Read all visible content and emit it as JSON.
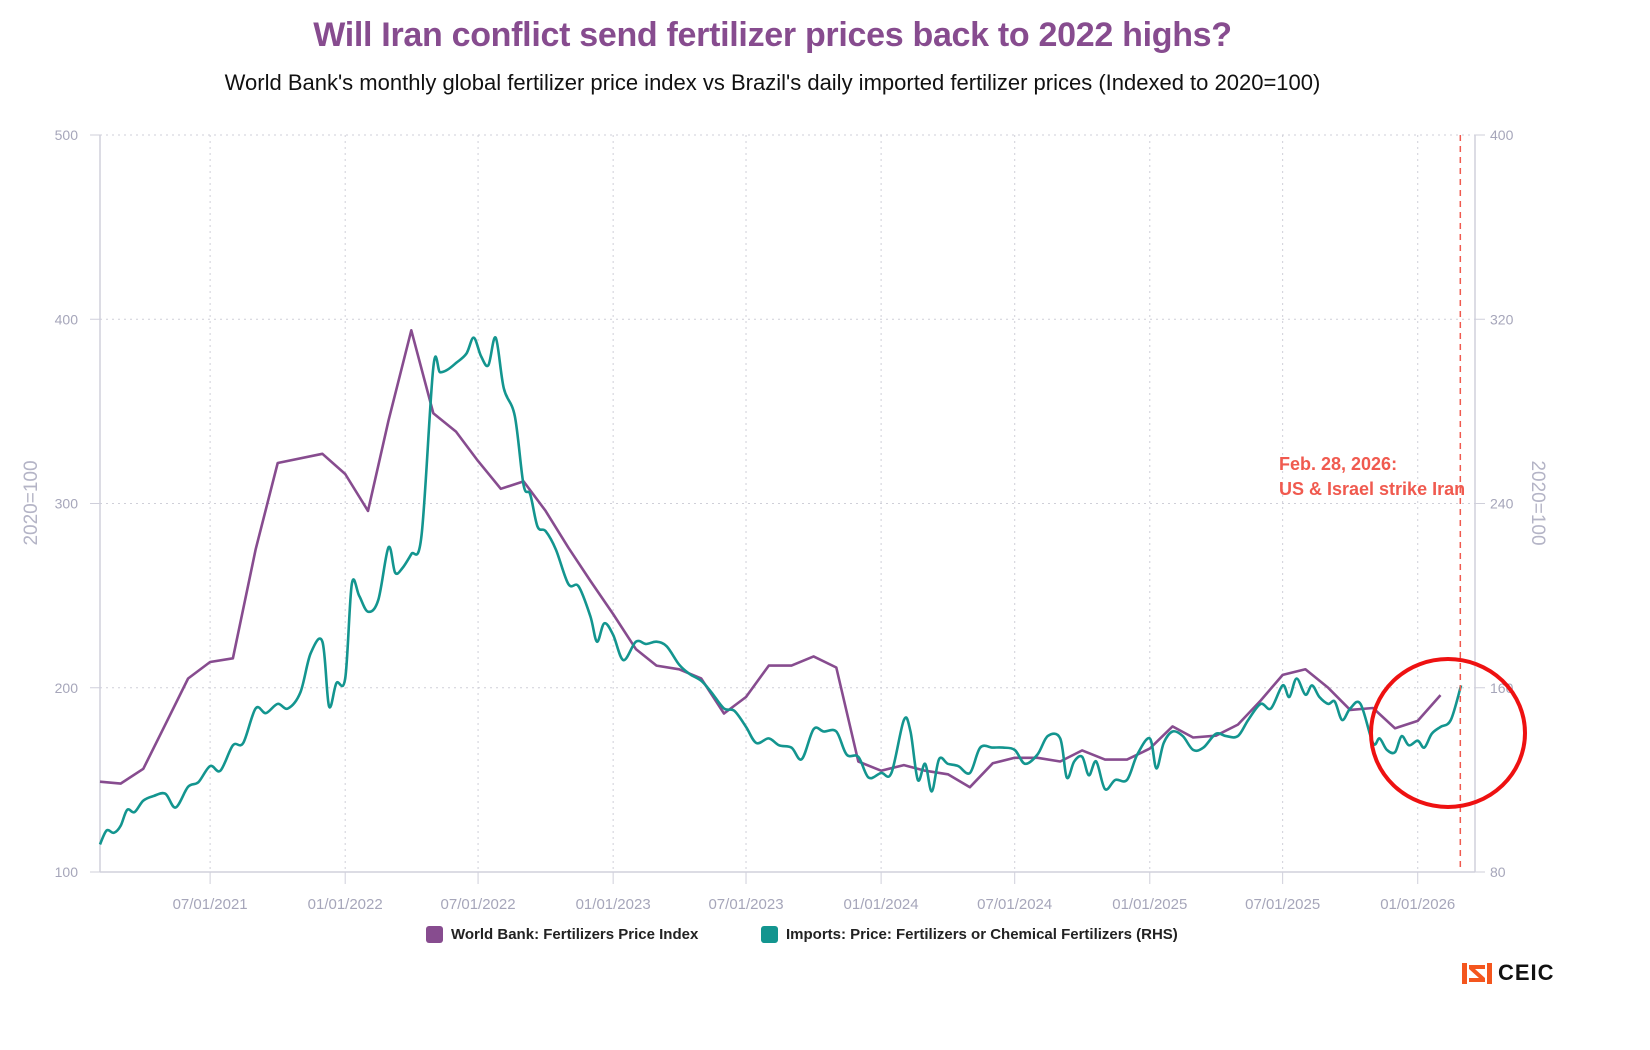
{
  "title": "Will Iran conflict send fertilizer prices back to 2022 highs?",
  "subtitle": "World Bank's monthly global fertilizer price index vs Brazil's daily imported fertilizer prices (Indexed to 2020=100)",
  "colors": {
    "title": "#874c8f",
    "world_bank": "#874c8f",
    "imports": "#13958f",
    "annotation": "#f05a4f",
    "highlight_circle": "#ee1111"
  },
  "annotation": {
    "line1": "Feb. 28, 2026:",
    "line2": "US & Israel strike Iran",
    "date": "2026-02-28"
  },
  "logo": {
    "text": "CEIC",
    "icon": "ceic-logo-icon"
  },
  "chart_data": {
    "type": "line",
    "title": "Will Iran conflict send fertilizer prices back to 2022 highs?",
    "subtitle": "World Bank's monthly global fertilizer price index vs Brazil's daily imported fertilizer prices (Indexed to 2020=100)",
    "xlabel": "",
    "ylabel_left": "2020=100",
    "ylabel_right": "2020=100",
    "xlim": [
      "2021-02-01",
      "2026-03-20"
    ],
    "ylim_left": [
      100,
      500
    ],
    "ylim_right": [
      80,
      400
    ],
    "yticks_left": [
      100,
      200,
      300,
      400,
      500
    ],
    "yticks_right": [
      80,
      160,
      240,
      320,
      400
    ],
    "x_tick_labels": [
      "07/01/2021",
      "01/01/2022",
      "07/01/2022",
      "01/01/2023",
      "07/01/2023",
      "01/01/2024",
      "07/01/2024",
      "01/01/2025",
      "07/01/2025",
      "01/01/2026"
    ],
    "x_ticks": [
      "2021-07-01",
      "2022-01-01",
      "2022-07-01",
      "2023-01-01",
      "2023-07-01",
      "2024-01-01",
      "2024-07-01",
      "2025-01-01",
      "2025-07-01",
      "2026-01-01"
    ],
    "grid": true,
    "legend_position": "bottom",
    "vline": {
      "date": "2026-02-28",
      "style": "dashed"
    },
    "series": [
      {
        "name": "World Bank: Fertilizers Price Index",
        "axis": "left",
        "points": [
          [
            "2021-02-01",
            149
          ],
          [
            "2021-03-01",
            148
          ],
          [
            "2021-04-01",
            156
          ],
          [
            "2021-05-01",
            180
          ],
          [
            "2021-06-01",
            205
          ],
          [
            "2021-07-01",
            214
          ],
          [
            "2021-08-01",
            216
          ],
          [
            "2021-09-01",
            275
          ],
          [
            "2021-10-01",
            322
          ],
          [
            "2021-12-01",
            327
          ],
          [
            "2022-01-01",
            316
          ],
          [
            "2022-02-01",
            296
          ],
          [
            "2022-03-01",
            345
          ],
          [
            "2022-04-01",
            394
          ],
          [
            "2022-05-01",
            349
          ],
          [
            "2022-06-01",
            339
          ],
          [
            "2022-07-01",
            323
          ],
          [
            "2022-08-01",
            308
          ],
          [
            "2022-09-01",
            312
          ],
          [
            "2022-10-01",
            296
          ],
          [
            "2022-11-01",
            276
          ],
          [
            "2022-12-01",
            258
          ],
          [
            "2023-01-01",
            240
          ],
          [
            "2023-02-01",
            221
          ],
          [
            "2023-03-01",
            212
          ],
          [
            "2023-04-01",
            210
          ],
          [
            "2023-05-01",
            205
          ],
          [
            "2023-06-01",
            186
          ],
          [
            "2023-07-01",
            195
          ],
          [
            "2023-08-01",
            212
          ],
          [
            "2023-09-01",
            212
          ],
          [
            "2023-10-01",
            217
          ],
          [
            "2023-11-01",
            211
          ],
          [
            "2023-12-01",
            160
          ],
          [
            "2024-01-01",
            155
          ],
          [
            "2024-02-01",
            158
          ],
          [
            "2024-03-01",
            155
          ],
          [
            "2024-04-01",
            153
          ],
          [
            "2024-05-01",
            146
          ],
          [
            "2024-06-01",
            159
          ],
          [
            "2024-07-01",
            162
          ],
          [
            "2024-08-01",
            162
          ],
          [
            "2024-09-01",
            160
          ],
          [
            "2024-10-01",
            166
          ],
          [
            "2024-11-01",
            161
          ],
          [
            "2024-12-01",
            161
          ],
          [
            "2025-01-01",
            167
          ],
          [
            "2025-02-01",
            179
          ],
          [
            "2025-03-01",
            173
          ],
          [
            "2025-04-01",
            174
          ],
          [
            "2025-05-01",
            180
          ],
          [
            "2025-06-01",
            193
          ],
          [
            "2025-07-01",
            207
          ],
          [
            "2025-08-01",
            210
          ],
          [
            "2025-09-01",
            200
          ],
          [
            "2025-10-01",
            188
          ],
          [
            "2025-11-01",
            189
          ],
          [
            "2025-12-01",
            178
          ],
          [
            "2026-01-01",
            182
          ],
          [
            "2026-02-01",
            196
          ]
        ]
      },
      {
        "name": "Imports: Price: Fertilizers or Chemical Fertilizers (RHS)",
        "axis": "right",
        "points": [
          [
            "2021-02-01",
            92
          ],
          [
            "2021-02-10",
            98
          ],
          [
            "2021-02-20",
            97
          ],
          [
            "2021-03-01",
            100
          ],
          [
            "2021-03-10",
            107
          ],
          [
            "2021-03-20",
            106
          ],
          [
            "2021-04-01",
            111
          ],
          [
            "2021-04-15",
            113
          ],
          [
            "2021-05-01",
            114
          ],
          [
            "2021-05-15",
            108
          ],
          [
            "2021-06-01",
            117
          ],
          [
            "2021-06-15",
            119
          ],
          [
            "2021-07-01",
            126
          ],
          [
            "2021-07-15",
            124
          ],
          [
            "2021-08-01",
            135
          ],
          [
            "2021-08-15",
            136
          ],
          [
            "2021-09-01",
            151
          ],
          [
            "2021-09-15",
            149
          ],
          [
            "2021-10-01",
            153
          ],
          [
            "2021-10-15",
            151
          ],
          [
            "2021-11-01",
            158
          ],
          [
            "2021-11-15",
            175
          ],
          [
            "2021-12-01",
            180
          ],
          [
            "2021-12-10",
            152
          ],
          [
            "2021-12-20",
            162
          ],
          [
            "2022-01-01",
            164
          ],
          [
            "2022-01-10",
            205
          ],
          [
            "2022-01-20",
            200
          ],
          [
            "2022-02-01",
            193
          ],
          [
            "2022-02-15",
            198
          ],
          [
            "2022-03-01",
            221
          ],
          [
            "2022-03-10",
            210
          ],
          [
            "2022-03-20",
            212
          ],
          [
            "2022-04-01",
            218
          ],
          [
            "2022-04-15",
            226
          ],
          [
            "2022-05-01",
            299
          ],
          [
            "2022-05-10",
            297
          ],
          [
            "2022-05-20",
            298
          ],
          [
            "2022-06-01",
            301
          ],
          [
            "2022-06-15",
            305
          ],
          [
            "2022-06-25",
            312
          ],
          [
            "2022-07-05",
            304
          ],
          [
            "2022-07-15",
            300
          ],
          [
            "2022-07-25",
            312
          ],
          [
            "2022-08-05",
            290
          ],
          [
            "2022-08-20",
            278
          ],
          [
            "2022-09-01",
            248
          ],
          [
            "2022-09-10",
            244
          ],
          [
            "2022-09-20",
            230
          ],
          [
            "2022-10-01",
            228
          ],
          [
            "2022-10-15",
            220
          ],
          [
            "2022-11-01",
            205
          ],
          [
            "2022-11-15",
            204
          ],
          [
            "2022-12-01",
            191
          ],
          [
            "2022-12-10",
            180
          ],
          [
            "2022-12-20",
            188
          ],
          [
            "2023-01-01",
            183
          ],
          [
            "2023-01-15",
            172
          ],
          [
            "2023-02-01",
            180
          ],
          [
            "2023-02-15",
            179
          ],
          [
            "2023-03-01",
            180
          ],
          [
            "2023-03-15",
            178
          ],
          [
            "2023-04-01",
            170
          ],
          [
            "2023-04-15",
            166
          ],
          [
            "2023-05-01",
            163
          ],
          [
            "2023-05-15",
            158
          ],
          [
            "2023-06-01",
            151
          ],
          [
            "2023-06-15",
            150
          ],
          [
            "2023-07-01",
            143
          ],
          [
            "2023-07-15",
            136
          ],
          [
            "2023-08-01",
            138
          ],
          [
            "2023-08-15",
            135
          ],
          [
            "2023-09-01",
            134
          ],
          [
            "2023-09-15",
            129
          ],
          [
            "2023-10-01",
            142
          ],
          [
            "2023-10-15",
            141
          ],
          [
            "2023-11-01",
            141
          ],
          [
            "2023-11-15",
            131
          ],
          [
            "2023-12-01",
            130
          ],
          [
            "2023-12-15",
            121
          ],
          [
            "2024-01-01",
            123
          ],
          [
            "2024-01-15",
            123
          ],
          [
            "2024-02-01",
            146
          ],
          [
            "2024-02-10",
            141
          ],
          [
            "2024-02-20",
            120
          ],
          [
            "2024-03-01",
            127
          ],
          [
            "2024-03-10",
            115
          ],
          [
            "2024-03-20",
            129
          ],
          [
            "2024-04-01",
            127
          ],
          [
            "2024-04-15",
            126
          ],
          [
            "2024-05-01",
            123
          ],
          [
            "2024-05-15",
            134
          ],
          [
            "2024-06-01",
            134
          ],
          [
            "2024-06-15",
            134
          ],
          [
            "2024-07-01",
            133
          ],
          [
            "2024-07-15",
            127
          ],
          [
            "2024-08-01",
            131
          ],
          [
            "2024-08-15",
            139
          ],
          [
            "2024-09-01",
            138
          ],
          [
            "2024-09-10",
            121
          ],
          [
            "2024-09-20",
            128
          ],
          [
            "2024-10-01",
            130
          ],
          [
            "2024-10-10",
            122
          ],
          [
            "2024-10-20",
            128
          ],
          [
            "2024-11-01",
            116
          ],
          [
            "2024-11-15",
            120
          ],
          [
            "2024-12-01",
            120
          ],
          [
            "2024-12-15",
            131
          ],
          [
            "2025-01-01",
            138
          ],
          [
            "2025-01-10",
            125
          ],
          [
            "2025-01-20",
            136
          ],
          [
            "2025-02-01",
            141
          ],
          [
            "2025-02-15",
            139
          ],
          [
            "2025-03-01",
            133
          ],
          [
            "2025-03-15",
            134
          ],
          [
            "2025-04-01",
            140
          ],
          [
            "2025-04-15",
            139
          ],
          [
            "2025-05-01",
            139
          ],
          [
            "2025-05-15",
            146
          ],
          [
            "2025-06-01",
            153
          ],
          [
            "2025-06-15",
            151
          ],
          [
            "2025-07-01",
            161
          ],
          [
            "2025-07-10",
            156
          ],
          [
            "2025-07-20",
            164
          ],
          [
            "2025-08-01",
            157
          ],
          [
            "2025-08-10",
            161
          ],
          [
            "2025-08-20",
            156
          ],
          [
            "2025-09-01",
            153
          ],
          [
            "2025-09-10",
            154
          ],
          [
            "2025-09-20",
            146
          ],
          [
            "2025-10-01",
            151
          ],
          [
            "2025-10-15",
            153
          ],
          [
            "2025-11-01",
            136
          ],
          [
            "2025-11-10",
            138
          ],
          [
            "2025-11-20",
            133
          ],
          [
            "2025-12-01",
            132
          ],
          [
            "2025-12-10",
            139
          ],
          [
            "2025-12-20",
            135
          ],
          [
            "2026-01-01",
            137
          ],
          [
            "2026-01-10",
            134
          ],
          [
            "2026-01-20",
            140
          ],
          [
            "2026-02-01",
            143
          ],
          [
            "2026-02-15",
            146
          ],
          [
            "2026-03-01",
            161
          ]
        ]
      }
    ],
    "annotations": [
      {
        "text": "Feb. 28, 2026: US & Israel strike Iran",
        "anchor_date": "2026-02-28"
      },
      {
        "shape": "circle",
        "around": "latest values (Nov 2025 – Mar 2026)"
      }
    ]
  }
}
